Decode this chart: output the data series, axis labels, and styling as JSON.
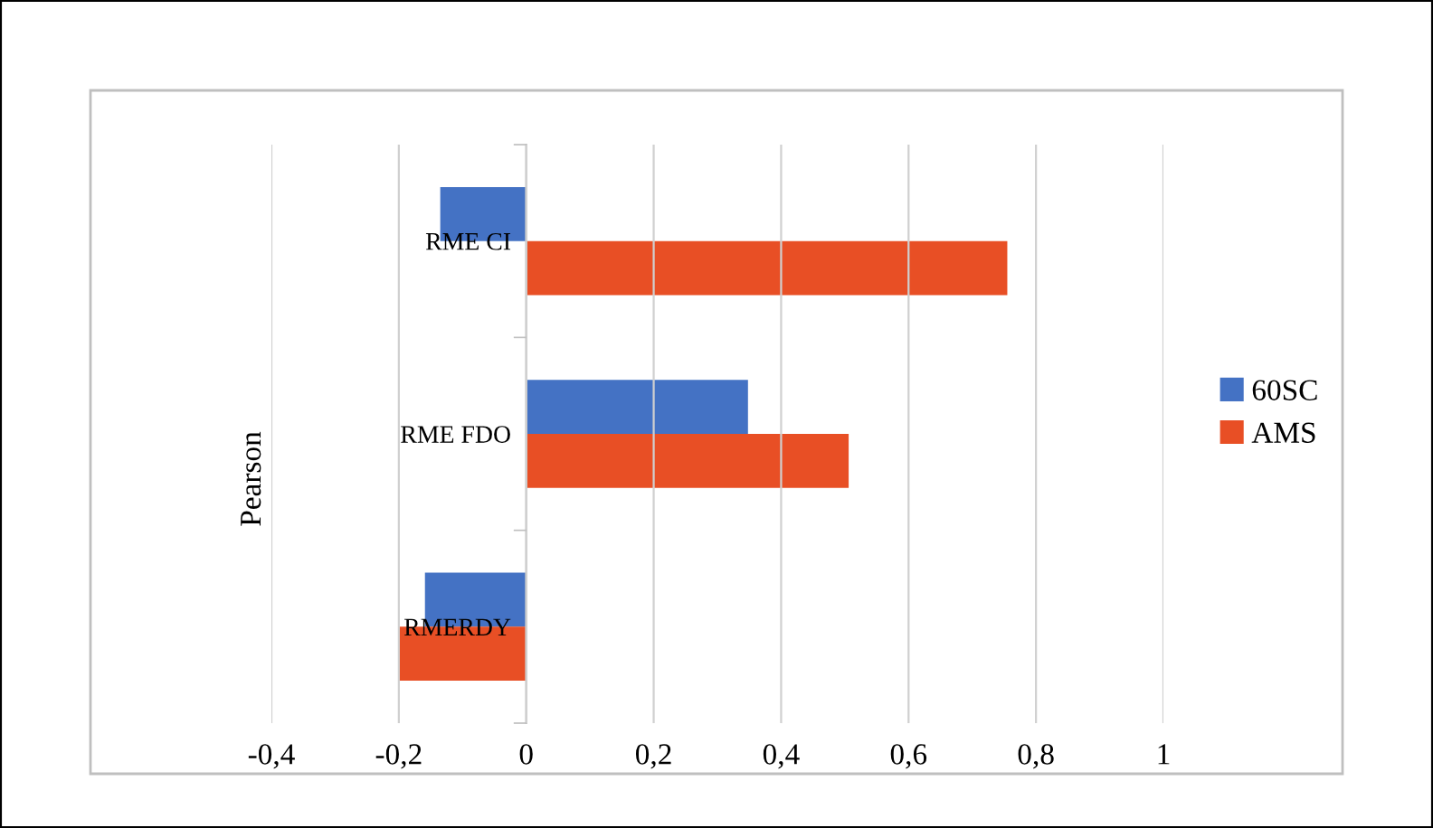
{
  "chart_data": {
    "type": "bar",
    "orientation": "horizontal",
    "ylabel": "Pearson",
    "categories": [
      "RME CI",
      "RME FDO",
      "RMERDY"
    ],
    "series": [
      {
        "name": "60SC",
        "color": "#4472c4",
        "values": [
          -0.135,
          0.348,
          -0.159
        ]
      },
      {
        "name": "AMS",
        "color": "#e84f25",
        "values": [
          0.755,
          0.506,
          -0.2
        ]
      }
    ],
    "xlim": [
      -0.4,
      1
    ],
    "xticks": [
      {
        "value": -0.4,
        "label": "-0,4"
      },
      {
        "value": -0.2,
        "label": "-0,2"
      },
      0,
      {
        "value": 0.2,
        "label": "0,2"
      },
      {
        "value": 0.4,
        "label": "0,4"
      },
      {
        "value": 0.6,
        "label": "0,6"
      },
      {
        "value": 0.8,
        "label": "0,8"
      },
      1
    ],
    "grid": "x",
    "legend": "right"
  }
}
